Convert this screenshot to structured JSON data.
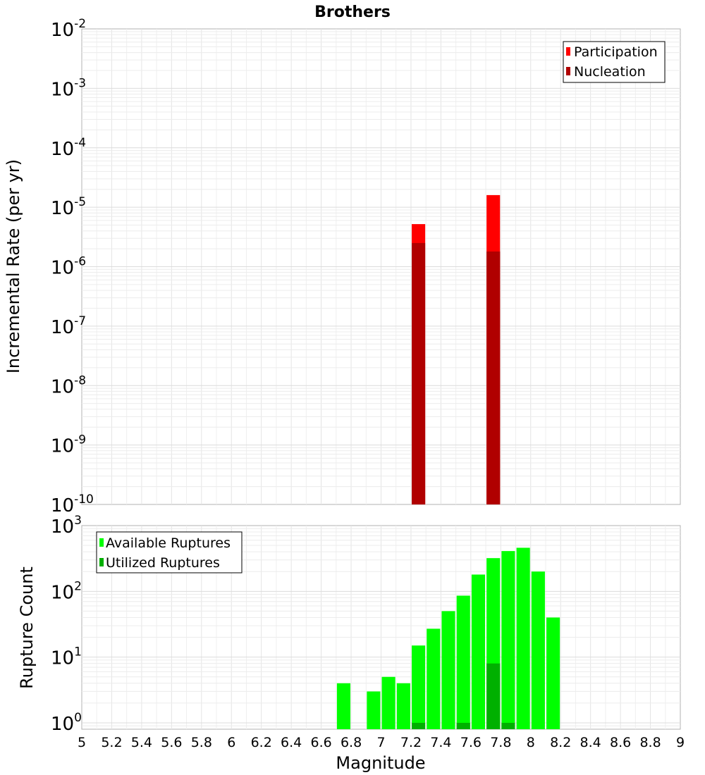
{
  "title": "Brothers",
  "x_label": "Magnitude",
  "chart_data": [
    {
      "id": "rates",
      "type": "bar",
      "ylabel": "Incremental Rate (per yr)",
      "yscale": "log",
      "ylim": [
        1e-10,
        0.01
      ],
      "xlim": [
        5,
        9
      ],
      "grid": true,
      "legend_position": "top-right",
      "bar_width": 0.09,
      "y_ticks": [
        {
          "base": "10",
          "exp": "-10",
          "value": 1e-10
        },
        {
          "base": "10",
          "exp": "-9",
          "value": 1e-09
        },
        {
          "base": "10",
          "exp": "-8",
          "value": 1e-08
        },
        {
          "base": "10",
          "exp": "-7",
          "value": 1e-07
        },
        {
          "base": "10",
          "exp": "-6",
          "value": 1e-06
        },
        {
          "base": "10",
          "exp": "-5",
          "value": 1e-05
        },
        {
          "base": "10",
          "exp": "-4",
          "value": 0.0001
        },
        {
          "base": "10",
          "exp": "-3",
          "value": 0.001
        },
        {
          "base": "10",
          "exp": "-2",
          "value": 0.01
        }
      ],
      "series": [
        {
          "name": "Participation",
          "color": "#ff0000",
          "x": [
            7.25,
            7.75
          ],
          "values": [
            5.2e-06,
            1.6e-05
          ]
        },
        {
          "name": "Nucleation",
          "color": "#b00000",
          "x": [
            7.25,
            7.75
          ],
          "values": [
            2.5e-06,
            1.8e-06
          ]
        }
      ]
    },
    {
      "id": "counts",
      "type": "bar",
      "ylabel": "Rupture Count",
      "yscale": "log",
      "ylim": [
        0.8,
        1000
      ],
      "xlim": [
        5,
        9
      ],
      "grid": true,
      "legend_position": "top-left",
      "bar_width": 0.09,
      "y_ticks": [
        {
          "base": "10",
          "exp": "0",
          "value": 1
        },
        {
          "base": "10",
          "exp": "1",
          "value": 10
        },
        {
          "base": "10",
          "exp": "2",
          "value": 100
        },
        {
          "base": "10",
          "exp": "3",
          "value": 1000
        }
      ],
      "series": [
        {
          "name": "Available Ruptures",
          "color": "#00ff00",
          "x": [
            6.75,
            6.95,
            7.05,
            7.15,
            7.25,
            7.35,
            7.45,
            7.55,
            7.65,
            7.75,
            7.85,
            7.95,
            8.05,
            8.15
          ],
          "values": [
            4,
            3,
            5,
            4,
            15,
            27,
            50,
            86,
            180,
            320,
            410,
            460,
            200,
            40
          ]
        },
        {
          "name": "Utilized Ruptures",
          "color": "#00b000",
          "x": [
            7.25,
            7.55,
            7.75,
            7.85
          ],
          "values": [
            1,
            1,
            8,
            1
          ]
        }
      ]
    }
  ],
  "x_ticks": [
    "5",
    "5.2",
    "5.4",
    "5.6",
    "5.8",
    "6",
    "6.2",
    "6.4",
    "6.6",
    "6.8",
    "7",
    "7.2",
    "7.4",
    "7.6",
    "7.8",
    "8",
    "8.2",
    "8.4",
    "8.6",
    "8.8",
    "9"
  ]
}
